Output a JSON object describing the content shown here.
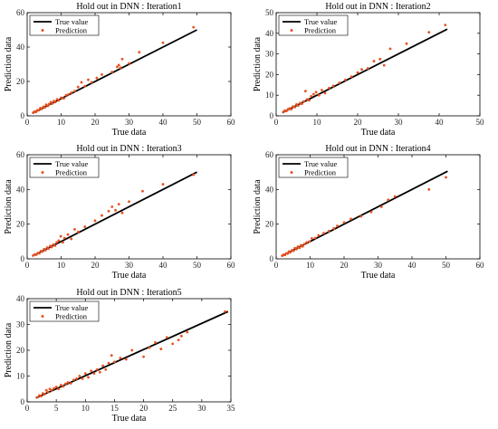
{
  "chart_data": [
    {
      "type": "scatter",
      "title": "Hold out in DNN : Iteration1",
      "xlabel": "True data",
      "ylabel": "Prediction data",
      "xlim": [
        0,
        60
      ],
      "ylim": [
        0,
        60
      ],
      "xticks": [
        "0",
        "10",
        "20",
        "30",
        "40",
        "50",
        "60"
      ],
      "yticks": [
        "0",
        "20",
        "40",
        "60"
      ],
      "legend": "top-left",
      "colors": {
        "line": "#000000",
        "points": "#E8501F"
      },
      "series": [
        {
          "name": "True value",
          "kind": "line",
          "x": [
            1.5,
            50
          ],
          "y": [
            1.5,
            50
          ]
        },
        {
          "name": "Prediction",
          "kind": "scatter",
          "x": [
            1.8,
            2.2,
            2.6,
            3.0,
            3.4,
            3.9,
            4.3,
            4.8,
            5.2,
            5.6,
            6.1,
            6.5,
            7.0,
            7.4,
            7.9,
            8.3,
            8.8,
            9.3,
            10.0,
            10.8,
            11.5,
            12.2,
            13.0,
            14.0,
            15.0,
            16.0,
            17.0,
            18.0,
            19.0,
            20.5,
            22.0,
            25.0,
            26.5,
            27.0,
            27.5,
            28.0,
            30.0,
            33.0,
            40.0,
            49.0
          ],
          "y": [
            1.9,
            2.5,
            2.3,
            3.3,
            3.2,
            4.5,
            4.0,
            5.3,
            4.9,
            6.5,
            5.8,
            6.9,
            8.0,
            7.1,
            8.6,
            8.0,
            9.6,
            9.0,
            10.5,
            10.2,
            12.0,
            12.5,
            13.5,
            14.4,
            16.8,
            19.5,
            17.2,
            21.0,
            19.5,
            22.0,
            24.0,
            25.5,
            28.5,
            29.5,
            28.0,
            33.0,
            30.5,
            37.0,
            42.5,
            51.5
          ]
        }
      ]
    },
    {
      "type": "scatter",
      "title": "Hold out in DNN : Iteration2",
      "xlabel": "True data",
      "ylabel": "Prediction data",
      "xlim": [
        0,
        50
      ],
      "ylim": [
        0,
        50
      ],
      "xticks": [
        "0",
        "10",
        "20",
        "30",
        "40",
        "50"
      ],
      "yticks": [
        "0",
        "10",
        "20",
        "30",
        "40",
        "50"
      ],
      "legend": "top-left",
      "colors": {
        "line": "#000000",
        "points": "#E8501F"
      },
      "series": [
        {
          "name": "True value",
          "kind": "line",
          "x": [
            1.5,
            42
          ],
          "y": [
            1.5,
            42
          ]
        },
        {
          "name": "Prediction",
          "kind": "scatter",
          "x": [
            1.8,
            2.1,
            2.5,
            2.9,
            3.3,
            3.7,
            4.1,
            4.6,
            5.0,
            5.4,
            5.9,
            6.3,
            6.8,
            7.2,
            7.6,
            8.1,
            8.6,
            9.2,
            9.8,
            10.5,
            11.2,
            12.0,
            13.0,
            14.0,
            15.5,
            17.0,
            18.5,
            20.0,
            21.0,
            22.5,
            24.0,
            25.5,
            26.5,
            28.0,
            32.0,
            37.5,
            41.5
          ],
          "y": [
            1.9,
            2.5,
            2.3,
            3.2,
            3.6,
            3.2,
            4.5,
            4.2,
            5.5,
            5.0,
            6.2,
            5.8,
            7.0,
            12.0,
            8.0,
            7.5,
            9.5,
            10.5,
            11.5,
            10.0,
            12.5,
            11.0,
            13.5,
            14.5,
            16.0,
            17.5,
            19.0,
            21.0,
            22.5,
            23.0,
            26.5,
            27.5,
            24.5,
            32.5,
            35.0,
            40.5,
            44.0
          ]
        }
      ]
    },
    {
      "type": "scatter",
      "title": "Hold out in DNN : Iteration3",
      "xlabel": "True data",
      "ylabel": "Prediction data",
      "xlim": [
        0,
        60
      ],
      "ylim": [
        0,
        60
      ],
      "xticks": [
        "0",
        "10",
        "20",
        "30",
        "40",
        "50",
        "60"
      ],
      "yticks": [
        "0",
        "20",
        "40",
        "60"
      ],
      "legend": "top-left",
      "colors": {
        "line": "#000000",
        "points": "#E8501F"
      },
      "series": [
        {
          "name": "True value",
          "kind": "line",
          "x": [
            1.5,
            50
          ],
          "y": [
            1.5,
            50
          ]
        },
        {
          "name": "Prediction",
          "kind": "scatter",
          "x": [
            1.8,
            2.3,
            2.7,
            3.2,
            3.6,
            4.1,
            4.5,
            5.0,
            5.4,
            5.9,
            6.3,
            6.8,
            7.2,
            7.7,
            8.2,
            8.7,
            9.3,
            9.9,
            10.5,
            11.0,
            12.0,
            13.0,
            14.0,
            15.0,
            17.0,
            20.0,
            22.0,
            24.0,
            25.0,
            26.0,
            27.0,
            28.0,
            30.0,
            34.0,
            40.0,
            49.0
          ],
          "y": [
            2.0,
            2.6,
            2.4,
            3.4,
            3.2,
            4.5,
            4.2,
            5.6,
            5.0,
            6.5,
            5.9,
            7.5,
            6.8,
            8.2,
            7.6,
            9.5,
            10.5,
            13.0,
            9.5,
            12.0,
            14.0,
            11.5,
            17.0,
            15.5,
            18.5,
            22.0,
            25.0,
            27.5,
            30.0,
            28.0,
            31.5,
            26.5,
            33.0,
            39.0,
            43.0,
            48.5
          ]
        }
      ]
    },
    {
      "type": "scatter",
      "title": "Hold out in DNN : Iteration4",
      "xlabel": "True data",
      "ylabel": "Prediction data",
      "xlim": [
        0,
        60
      ],
      "ylim": [
        0,
        60
      ],
      "xticks": [
        "0",
        "10",
        "20",
        "30",
        "40",
        "50",
        "60"
      ],
      "yticks": [
        "0",
        "20",
        "40",
        "60"
      ],
      "legend": "top-left",
      "colors": {
        "line": "#000000",
        "points": "#E8501F"
      },
      "series": [
        {
          "name": "True value",
          "kind": "line",
          "x": [
            1.5,
            50.5
          ],
          "y": [
            1.5,
            50.5
          ]
        },
        {
          "name": "Prediction",
          "kind": "scatter",
          "x": [
            1.8,
            2.2,
            2.6,
            3.0,
            3.4,
            3.8,
            4.2,
            4.7,
            5.1,
            5.5,
            6.0,
            6.4,
            6.9,
            7.3,
            7.8,
            8.3,
            9.0,
            9.8,
            10.5,
            11.5,
            12.5,
            14.0,
            15.5,
            17.0,
            18.0,
            20.0,
            22.0,
            25.0,
            28.0,
            31.0,
            33.0,
            35.0,
            45.0,
            50.0
          ],
          "y": [
            1.8,
            2.4,
            2.2,
            3.2,
            3.0,
            4.2,
            3.8,
            5.0,
            4.6,
            6.2,
            5.6,
            7.0,
            6.4,
            7.8,
            7.2,
            8.5,
            9.5,
            10.0,
            11.8,
            12.0,
            13.5,
            14.8,
            16.0,
            17.5,
            19.0,
            21.0,
            23.0,
            24.5,
            27.0,
            30.0,
            34.0,
            36.0,
            40.0,
            47.0
          ]
        }
      ]
    },
    {
      "type": "scatter",
      "title": "Hold out in DNN : Iteration5",
      "xlabel": "True data",
      "ylabel": "Prediction data",
      "xlim": [
        0,
        35
      ],
      "ylim": [
        0,
        40
      ],
      "xticks": [
        "0",
        "5",
        "10",
        "15",
        "20",
        "25",
        "30",
        "35"
      ],
      "yticks": [
        "0",
        "10",
        "20",
        "30",
        "40"
      ],
      "legend": "top-left",
      "colors": {
        "line": "#000000",
        "points": "#E8501F"
      },
      "series": [
        {
          "name": "True value",
          "kind": "line",
          "x": [
            1.5,
            34.5
          ],
          "y": [
            1.5,
            35
          ]
        },
        {
          "name": "Prediction",
          "kind": "scatter",
          "x": [
            1.8,
            2.1,
            2.4,
            2.7,
            3.0,
            3.3,
            3.6,
            3.9,
            4.2,
            4.6,
            5.0,
            5.4,
            5.8,
            6.2,
            6.6,
            7.0,
            7.5,
            8.0,
            8.5,
            9.0,
            9.5,
            10.0,
            10.5,
            11.0,
            11.5,
            12.0,
            12.5,
            13.0,
            13.5,
            14.0,
            14.5,
            15.0,
            16.0,
            17.0,
            18.0,
            20.0,
            21.0,
            22.0,
            23.0,
            24.0,
            25.0,
            26.0,
            26.5,
            27.5,
            34.0
          ],
          "y": [
            1.8,
            2.5,
            2.2,
            3.3,
            3.0,
            4.5,
            3.8,
            5.0,
            4.5,
            5.2,
            5.8,
            5.0,
            6.5,
            6.0,
            7.0,
            7.5,
            7.2,
            8.5,
            9.0,
            10.0,
            9.0,
            11.0,
            9.5,
            12.0,
            11.0,
            12.5,
            11.5,
            14.0,
            12.5,
            15.0,
            18.0,
            15.5,
            17.0,
            16.5,
            20.0,
            17.5,
            21.0,
            23.0,
            20.5,
            25.0,
            22.5,
            24.0,
            25.5,
            27.0,
            35.0
          ]
        }
      ]
    }
  ]
}
